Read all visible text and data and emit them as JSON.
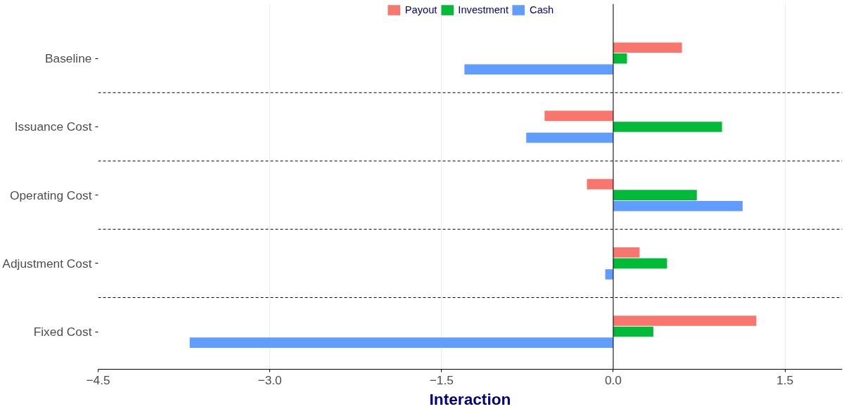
{
  "chart_data": {
    "type": "bar",
    "orientation": "horizontal",
    "xlabel": "Interaction",
    "categories": [
      "Baseline",
      "Issuance Cost",
      "Operating Cost",
      "Adjustment Cost",
      "Fixed Cost"
    ],
    "series": [
      {
        "name": "Payout",
        "color": "#f8766d",
        "values": [
          0.6,
          -0.6,
          -0.23,
          0.23,
          1.25
        ]
      },
      {
        "name": "Investment",
        "color": "#00ba38",
        "values": [
          0.12,
          0.95,
          0.73,
          0.47,
          0.35
        ]
      },
      {
        "name": "Cash",
        "color": "#619cff",
        "values": [
          -1.3,
          -0.76,
          1.13,
          -0.07,
          -3.7
        ]
      }
    ],
    "xlim": [
      -4.5,
      2.0
    ],
    "xticks": [
      {
        "value": -4.5,
        "label": "−4.5"
      },
      {
        "value": -3.0,
        "label": "−3.0"
      },
      {
        "value": -1.5,
        "label": "−1.5"
      },
      {
        "value": 0,
        "label": "0.0"
      },
      {
        "value": 1.5,
        "label": "1.5"
      }
    ],
    "ref_lines": [
      {
        "axis": "x",
        "value": 0,
        "color": "#000000",
        "line_style": "solid"
      }
    ],
    "grid": "x",
    "legend": "top"
  }
}
